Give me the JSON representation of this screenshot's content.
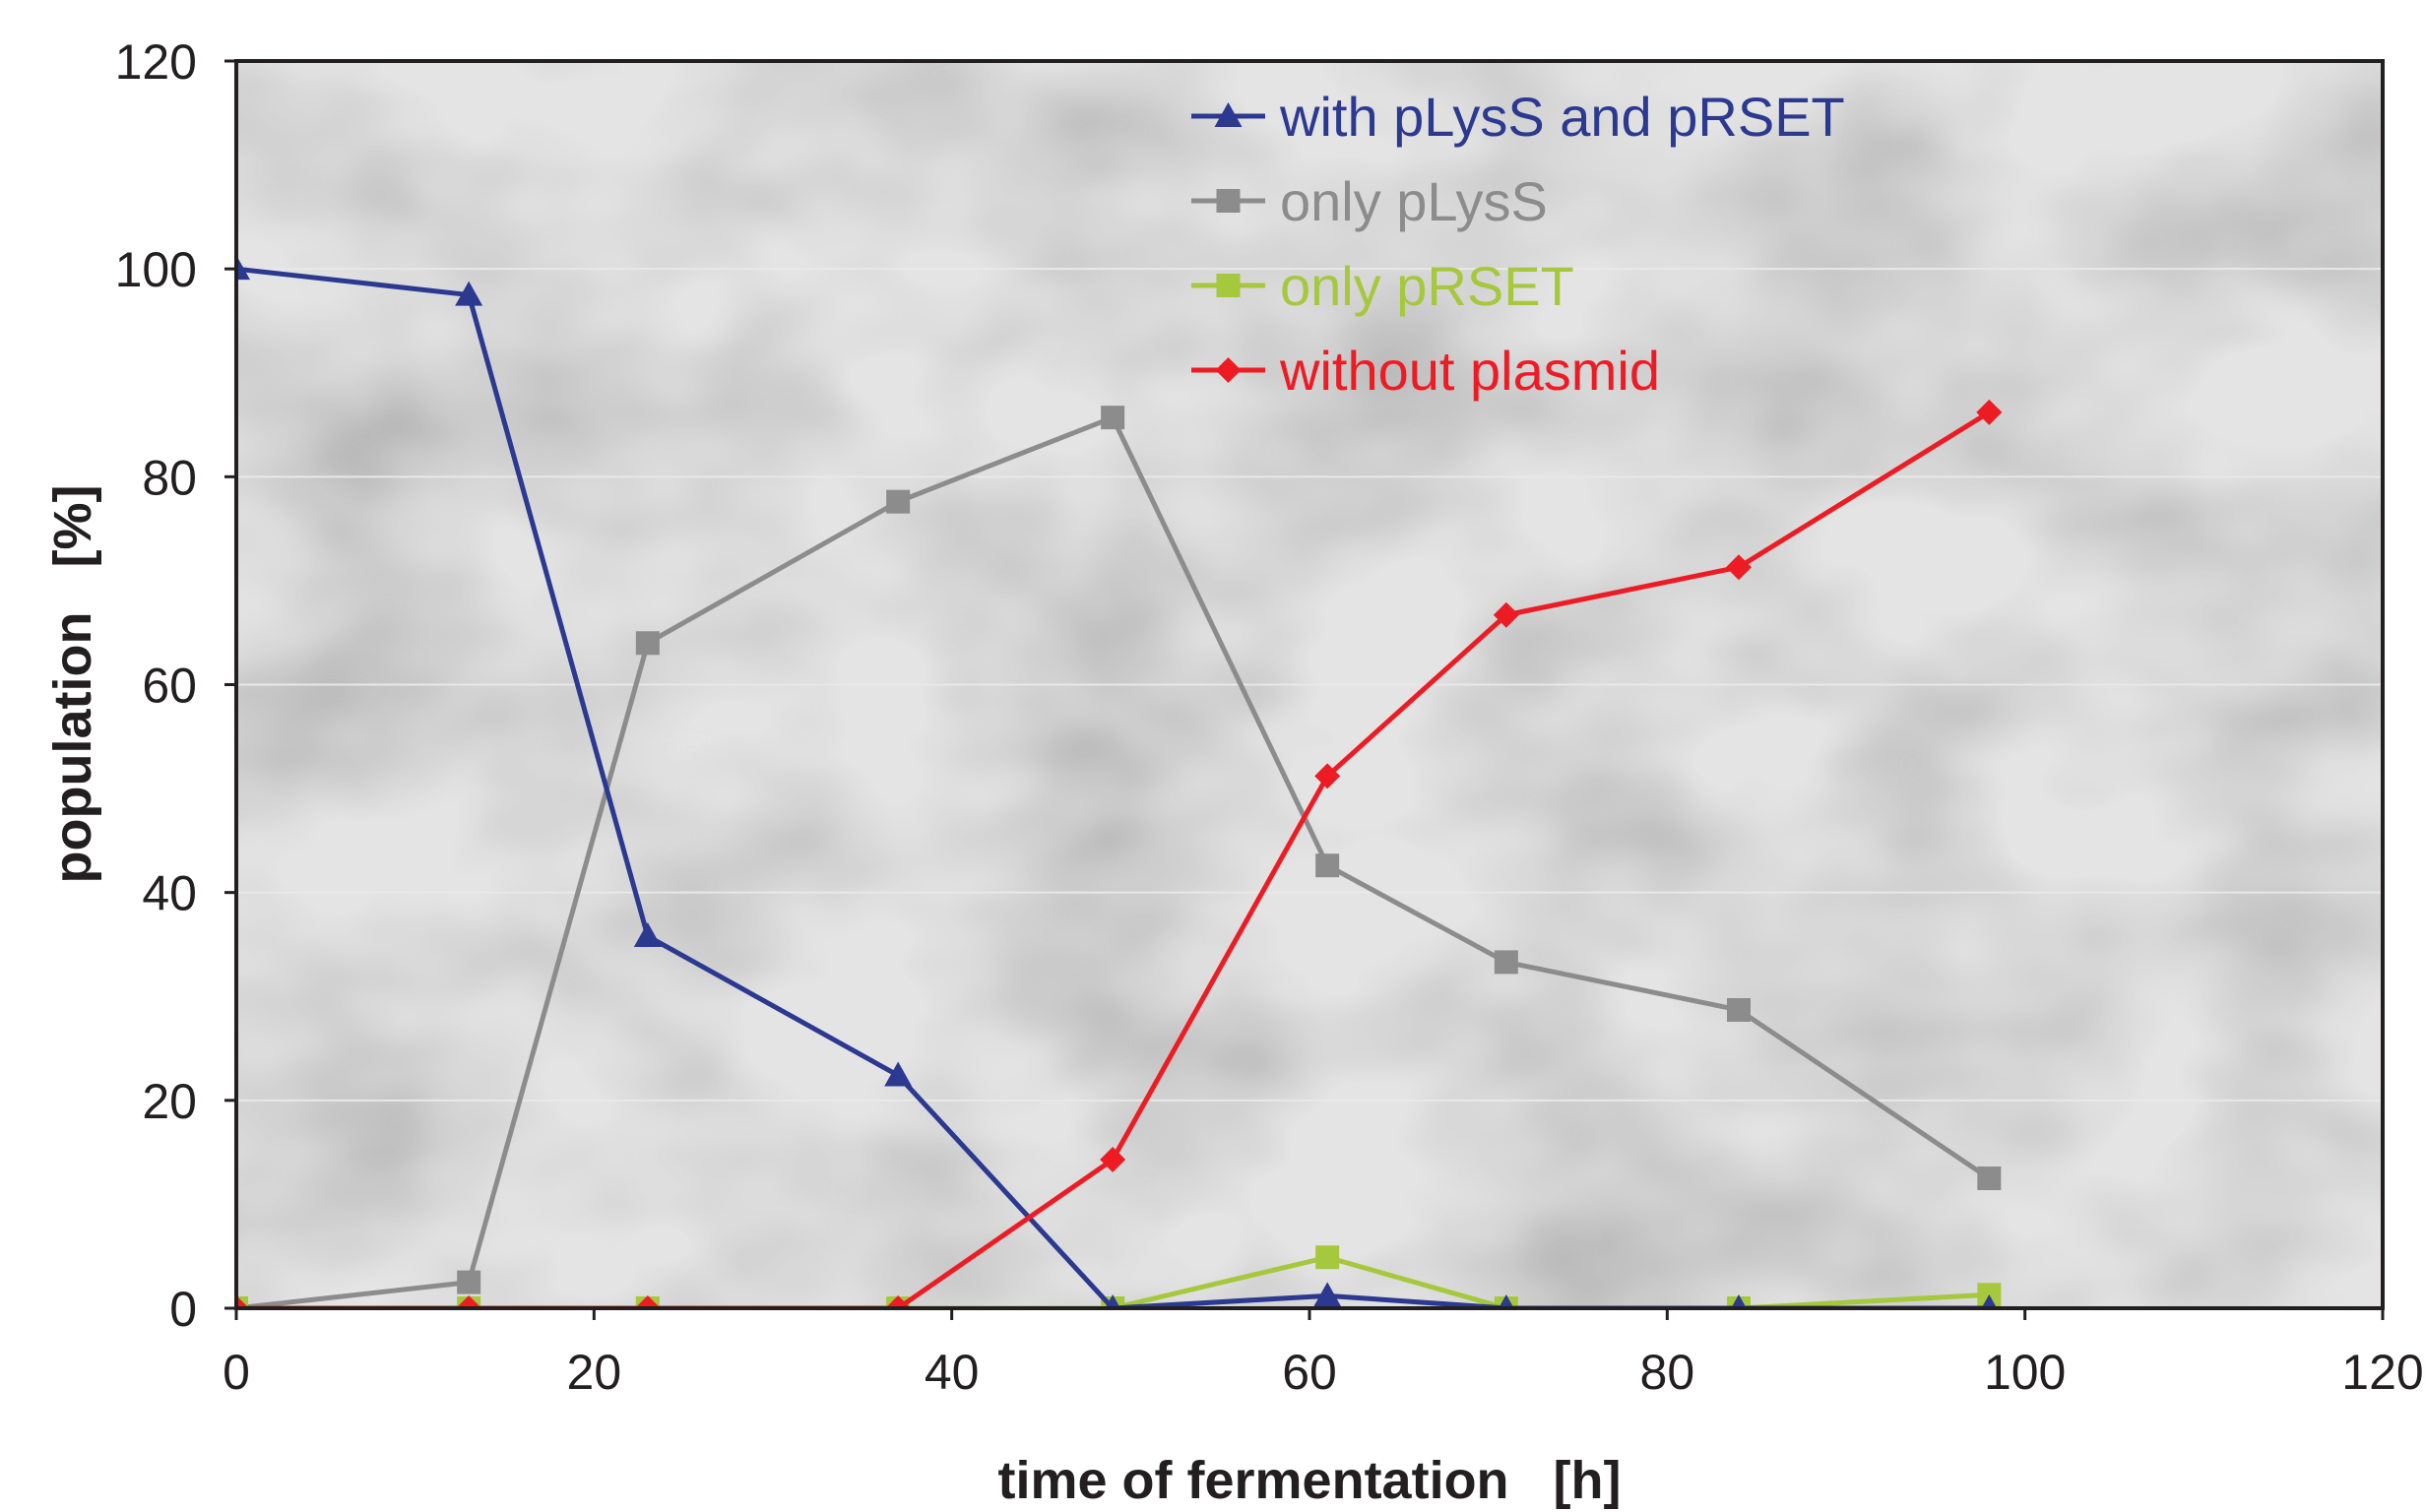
{
  "chart_data": {
    "type": "line",
    "title": "",
    "xlabel": "time of fermentation   [h]",
    "ylabel": "population   [%]",
    "xlim": [
      0,
      120
    ],
    "ylim": [
      0,
      120
    ],
    "xticks": [
      0,
      20,
      40,
      60,
      80,
      100,
      120
    ],
    "yticks": [
      0,
      20,
      40,
      60,
      80,
      100,
      120
    ],
    "x": [
      0,
      13,
      23,
      37,
      49,
      61,
      71,
      84,
      98
    ],
    "grid": "horizontal",
    "legend_position": "top-center",
    "background": "grayscale micrograph image",
    "series": [
      {
        "name": "with pLysS and pRSET",
        "marker": "triangle",
        "color": "#2b3990",
        "values": [
          100,
          97.5,
          35.8,
          22.4,
          0,
          1.2,
          0,
          0,
          0
        ]
      },
      {
        "name": "only pLysS",
        "marker": "square",
        "color": "#8c8c8c",
        "values": [
          0,
          2.5,
          64,
          77.6,
          85.7,
          42.6,
          33.3,
          28.7,
          12.5
        ]
      },
      {
        "name": "only pRSET",
        "marker": "square",
        "color": "#a6c83c",
        "values": [
          0,
          0,
          0,
          0,
          0,
          4.9,
          0,
          0,
          1.3
        ]
      },
      {
        "name": "without plasmid",
        "marker": "diamond",
        "color": "#ed1c24",
        "values": [
          0,
          0,
          0,
          0,
          14.3,
          51.2,
          66.7,
          71.3,
          86.2
        ]
      }
    ]
  }
}
